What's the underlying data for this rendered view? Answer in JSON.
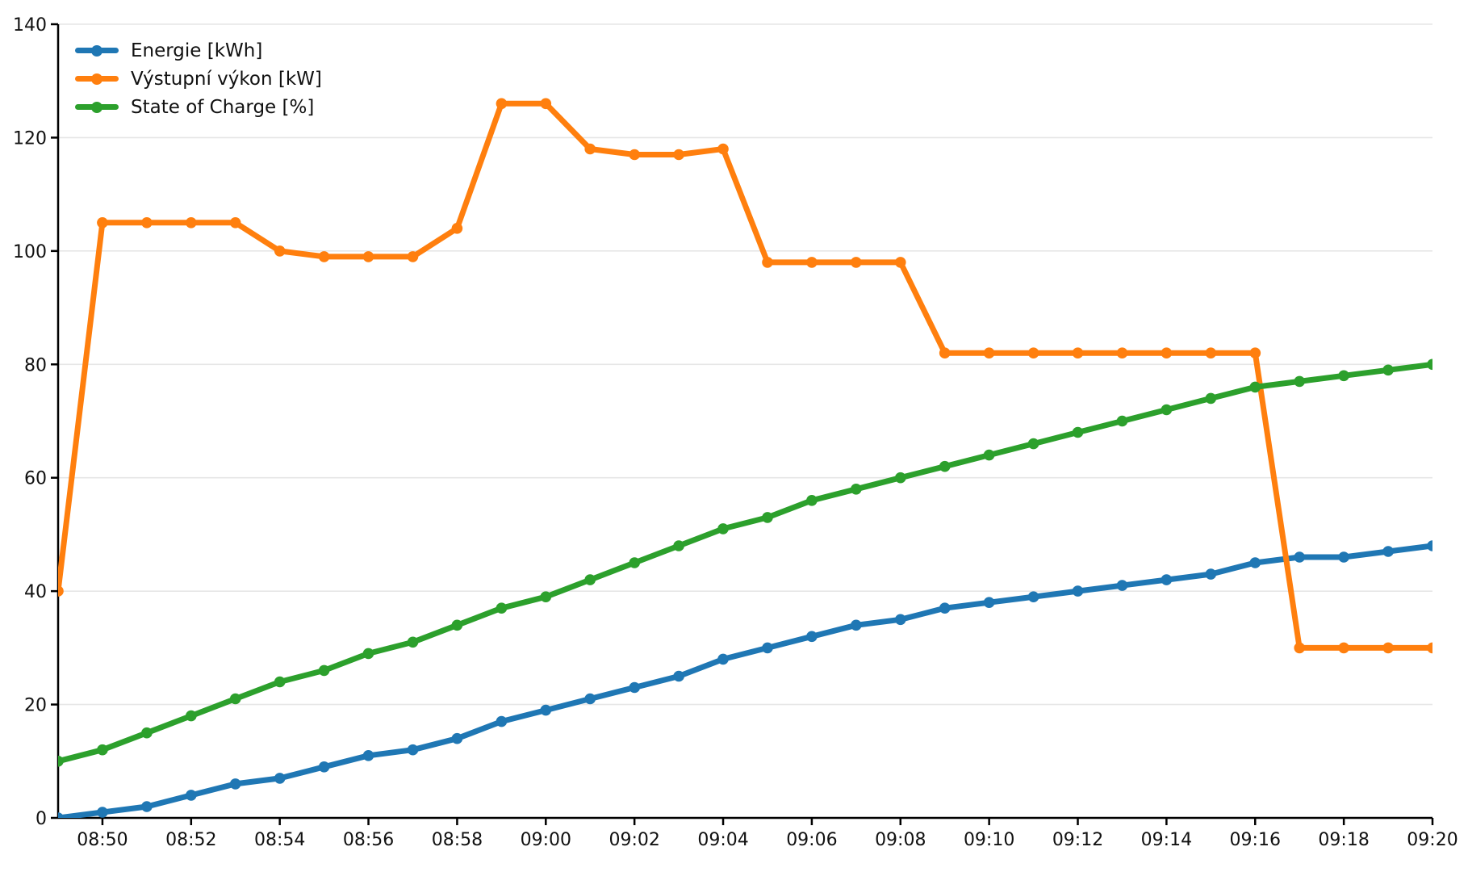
{
  "chart_data": {
    "type": "line",
    "x": [
      "08:49",
      "08:50",
      "08:51",
      "08:52",
      "08:53",
      "08:54",
      "08:55",
      "08:56",
      "08:57",
      "08:58",
      "08:59",
      "09:00",
      "09:01",
      "09:02",
      "09:03",
      "09:04",
      "09:05",
      "09:06",
      "09:07",
      "09:08",
      "09:09",
      "09:10",
      "09:11",
      "09:12",
      "09:13",
      "09:14",
      "09:15",
      "09:16",
      "09:17",
      "09:18",
      "09:19",
      "09:20"
    ],
    "x_tick_labels": [
      "08:50",
      "08:52",
      "08:54",
      "08:56",
      "08:58",
      "09:00",
      "09:02",
      "09:04",
      "09:06",
      "09:08",
      "09:10",
      "09:12",
      "09:14",
      "09:16",
      "09:18",
      "09:20"
    ],
    "y_ticks": [
      0,
      20,
      40,
      60,
      80,
      100,
      120,
      140
    ],
    "ylim": [
      0,
      140
    ],
    "title": "",
    "xlabel": "",
    "ylabel": "",
    "grid": "horizontal",
    "legend_position": "upper-left",
    "colors": {
      "background": "#ffffff",
      "gridline": "#e6e6e6",
      "axis": "#000000",
      "text": "#111111"
    },
    "series": [
      {
        "name": "energie",
        "label": "Energie [kWh]",
        "color": "#1f77b4",
        "values": [
          0,
          1,
          2,
          4,
          6,
          7,
          9,
          11,
          12,
          14,
          17,
          19,
          21,
          23,
          25,
          28,
          30,
          32,
          34,
          35,
          37,
          38,
          39,
          40,
          41,
          42,
          43,
          45,
          46,
          46,
          47,
          48
        ]
      },
      {
        "name": "vystupni-vykon",
        "label": "Výstupní výkon [kW]",
        "color": "#ff7f0e",
        "values": [
          40,
          105,
          105,
          105,
          105,
          100,
          99,
          99,
          99,
          104,
          126,
          126,
          118,
          117,
          117,
          118,
          98,
          98,
          98,
          98,
          82,
          82,
          82,
          82,
          82,
          82,
          82,
          82,
          30,
          30,
          30,
          30
        ]
      },
      {
        "name": "state-of-charge",
        "label": "State of Charge [%]",
        "color": "#2ca02c",
        "values": [
          10,
          12,
          15,
          18,
          21,
          24,
          26,
          29,
          31,
          34,
          37,
          39,
          42,
          45,
          48,
          51,
          53,
          56,
          58,
          60,
          62,
          64,
          66,
          68,
          70,
          72,
          74,
          76,
          77,
          78,
          79,
          80
        ]
      }
    ]
  }
}
